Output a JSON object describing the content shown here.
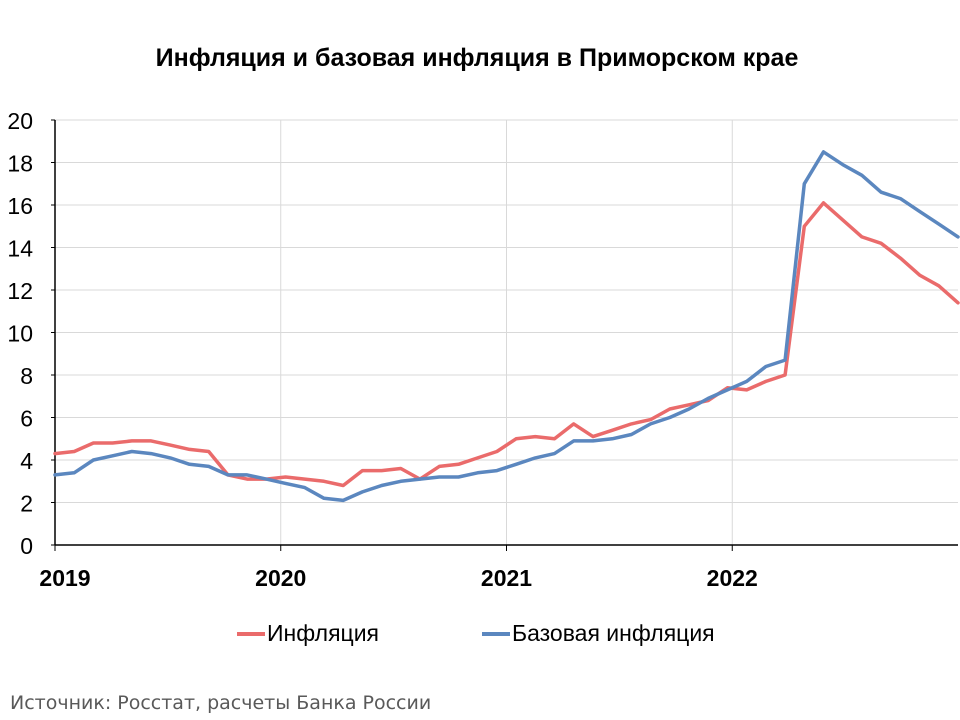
{
  "chart_data": {
    "type": "line",
    "title": "Инфляция и базовая инфляция в Приморском крае",
    "xlabel": "",
    "ylabel": "",
    "ylim": [
      0,
      20
    ],
    "yticks": [
      0,
      2,
      4,
      6,
      8,
      10,
      12,
      14,
      16,
      18,
      20
    ],
    "xticks": [
      "2019",
      "2020",
      "2021",
      "2022"
    ],
    "grid": true,
    "legend_position": "bottom",
    "x": [
      "2019-01",
      "2019-02",
      "2019-03",
      "2019-04",
      "2019-05",
      "2019-06",
      "2019-07",
      "2019-08",
      "2019-09",
      "2019-10",
      "2019-11",
      "2019-12",
      "2020-01",
      "2020-02",
      "2020-03",
      "2020-04",
      "2020-05",
      "2020-06",
      "2020-07",
      "2020-08",
      "2020-09",
      "2020-10",
      "2020-11",
      "2020-12",
      "2021-01",
      "2021-02",
      "2021-03",
      "2021-04",
      "2021-05",
      "2021-06",
      "2021-07",
      "2021-08",
      "2021-09",
      "2021-10",
      "2021-11",
      "2021-12",
      "2022-01",
      "2022-02",
      "2022-03",
      "2022-04",
      "2022-05",
      "2022-06",
      "2022-07",
      "2022-08",
      "2022-09",
      "2022-10",
      "2022-11",
      "2022-12"
    ],
    "series": [
      {
        "name": "Инфляция",
        "color": "#ea6b6b",
        "values": [
          4.3,
          4.4,
          4.8,
          4.8,
          4.9,
          4.9,
          4.7,
          4.5,
          4.4,
          3.3,
          3.1,
          3.1,
          3.2,
          3.1,
          3.0,
          2.8,
          3.5,
          3.5,
          3.6,
          3.1,
          3.7,
          3.8,
          4.1,
          4.4,
          5.0,
          5.1,
          5.0,
          5.7,
          5.1,
          5.4,
          5.7,
          5.9,
          6.4,
          6.6,
          6.8,
          7.4,
          7.3,
          7.7,
          8.0,
          15.0,
          16.1,
          15.3,
          14.5,
          14.2,
          13.5,
          12.7,
          12.2,
          11.4
        ]
      },
      {
        "name": "Базовая инфляция",
        "color": "#5b87bf",
        "values": [
          3.3,
          3.4,
          4.0,
          4.2,
          4.4,
          4.3,
          4.1,
          3.8,
          3.7,
          3.3,
          3.3,
          3.1,
          2.9,
          2.7,
          2.2,
          2.1,
          2.5,
          2.8,
          3.0,
          3.1,
          3.2,
          3.2,
          3.4,
          3.5,
          3.8,
          4.1,
          4.3,
          4.9,
          4.9,
          5.0,
          5.2,
          5.7,
          6.0,
          6.4,
          6.9,
          7.3,
          7.7,
          8.4,
          8.7,
          17.0,
          18.5,
          17.9,
          17.4,
          16.6,
          16.3,
          15.7,
          15.1,
          14.5
        ]
      }
    ]
  },
  "source": "Источник: Росстат, расчеты Банка России"
}
